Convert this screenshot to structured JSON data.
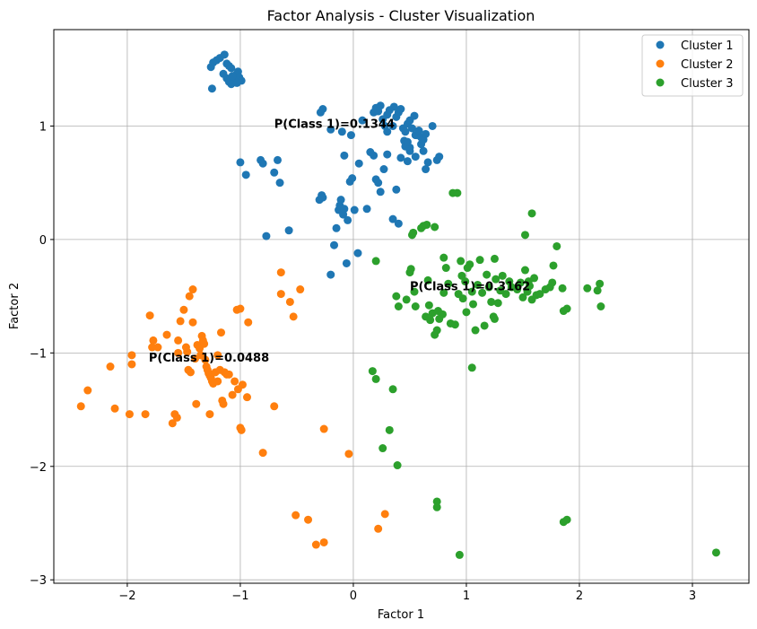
{
  "chart_data": {
    "type": "scatter",
    "title": "Factor Analysis - Cluster Visualization",
    "xlabel": "Factor 1",
    "ylabel": "Factor 2",
    "xlim": [
      -2.65,
      3.5
    ],
    "ylim": [
      -3.03,
      1.85
    ],
    "xticks": [
      -2,
      -1,
      0,
      1,
      2,
      3
    ],
    "yticks": [
      -3,
      -2,
      -1,
      0,
      1
    ],
    "grid": true,
    "legend_position": "top-right",
    "series": [
      {
        "name": "Cluster 1",
        "color": "#1f77b4",
        "points": [
          [
            -1.26,
            1.52
          ],
          [
            -1.24,
            1.56
          ],
          [
            -1.21,
            1.58
          ],
          [
            -1.18,
            1.6
          ],
          [
            -1.14,
            1.63
          ],
          [
            -1.12,
            1.55
          ],
          [
            -1.1,
            1.53
          ],
          [
            -1.08,
            1.51
          ],
          [
            -1.04,
            1.45
          ],
          [
            -1.02,
            1.48
          ],
          [
            -1.15,
            1.46
          ],
          [
            -1.12,
            1.42
          ],
          [
            -1.1,
            1.39
          ],
          [
            -1.08,
            1.37
          ],
          [
            -1.05,
            1.41
          ],
          [
            -1.01,
            1.43
          ],
          [
            -0.99,
            1.4
          ],
          [
            -1.03,
            1.38
          ],
          [
            -1.07,
            1.44
          ],
          [
            -1.25,
            1.33
          ],
          [
            -1.0,
            0.68
          ],
          [
            -0.95,
            0.57
          ],
          [
            -0.82,
            0.7
          ],
          [
            -0.8,
            0.67
          ],
          [
            -0.7,
            0.59
          ],
          [
            -0.67,
            0.7
          ],
          [
            -0.65,
            0.5
          ],
          [
            -0.77,
            0.03
          ],
          [
            -0.57,
            0.08
          ],
          [
            -0.3,
            0.35
          ],
          [
            -0.28,
            0.39
          ],
          [
            -0.27,
            0.37
          ],
          [
            -0.2,
            -0.31
          ],
          [
            -0.17,
            -0.05
          ],
          [
            -0.15,
            0.1
          ],
          [
            -0.13,
            0.26
          ],
          [
            -0.12,
            0.3
          ],
          [
            -0.11,
            0.35
          ],
          [
            -0.09,
            0.22
          ],
          [
            -0.08,
            0.27
          ],
          [
            -0.05,
            0.17
          ],
          [
            -0.03,
            0.51
          ],
          [
            -0.01,
            0.54
          ],
          [
            0.01,
            0.26
          ],
          [
            0.04,
            -0.12
          ],
          [
            -0.06,
            -0.21
          ],
          [
            0.12,
            0.27
          ],
          [
            0.15,
            0.77
          ],
          [
            0.18,
            0.74
          ],
          [
            0.22,
            0.5
          ],
          [
            0.24,
            0.42
          ],
          [
            0.27,
            0.62
          ],
          [
            0.3,
            0.75
          ],
          [
            0.35,
            0.18
          ],
          [
            0.38,
            0.44
          ],
          [
            0.4,
            0.14
          ],
          [
            0.42,
            0.72
          ],
          [
            0.45,
            0.87
          ],
          [
            0.48,
            0.69
          ],
          [
            0.5,
            0.81
          ],
          [
            0.55,
            0.92
          ],
          [
            0.6,
            0.84
          ],
          [
            0.62,
            0.78
          ],
          [
            0.66,
            0.68
          ],
          [
            0.7,
            1.0
          ],
          [
            0.74,
            0.7
          ],
          [
            0.76,
            0.73
          ],
          [
            0.64,
            0.62
          ],
          [
            0.55,
            0.73
          ],
          [
            -0.29,
            1.12
          ],
          [
            -0.27,
            1.15
          ],
          [
            -0.2,
            0.97
          ],
          [
            -0.1,
            0.95
          ],
          [
            -0.02,
            0.92
          ],
          [
            0.08,
            1.05
          ],
          [
            0.18,
            1.12
          ],
          [
            0.2,
            1.16
          ],
          [
            0.24,
            1.18
          ],
          [
            0.26,
            1.06
          ],
          [
            0.3,
            1.1
          ],
          [
            0.32,
            1.14
          ],
          [
            0.35,
            1.0
          ],
          [
            0.38,
            1.08
          ],
          [
            0.4,
            1.12
          ],
          [
            0.42,
            1.15
          ],
          [
            0.44,
            0.98
          ],
          [
            0.46,
            0.95
          ],
          [
            0.48,
            1.02
          ],
          [
            0.5,
            1.05
          ],
          [
            0.52,
            0.98
          ],
          [
            0.54,
            1.09
          ],
          [
            0.56,
            0.92
          ],
          [
            0.58,
            0.96
          ],
          [
            0.6,
            0.9
          ],
          [
            0.62,
            0.88
          ],
          [
            0.64,
            0.93
          ],
          [
            0.28,
            1.0
          ],
          [
            0.22,
            1.13
          ],
          [
            0.36,
            1.17
          ],
          [
            -0.08,
            0.74
          ],
          [
            0.05,
            0.67
          ],
          [
            0.2,
            0.53
          ],
          [
            0.3,
            0.95
          ],
          [
            0.46,
            0.82
          ],
          [
            0.5,
            0.78
          ],
          [
            0.48,
            0.86
          ]
        ]
      },
      {
        "name": "Cluster 2",
        "color": "#ff7f0e",
        "points": [
          [
            -2.41,
            -1.47
          ],
          [
            -2.35,
            -1.33
          ],
          [
            -2.15,
            -1.12
          ],
          [
            -2.11,
            -1.49
          ],
          [
            -1.98,
            -1.54
          ],
          [
            -1.96,
            -1.1
          ],
          [
            -1.96,
            -1.02
          ],
          [
            -1.84,
            -1.54
          ],
          [
            -1.8,
            -0.67
          ],
          [
            -1.78,
            -0.95
          ],
          [
            -1.77,
            -0.89
          ],
          [
            -1.73,
            -0.95
          ],
          [
            -1.65,
            -0.84
          ],
          [
            -1.6,
            -1.62
          ],
          [
            -1.58,
            -1.54
          ],
          [
            -1.56,
            -1.57
          ],
          [
            -1.55,
            -1.0
          ],
          [
            -1.55,
            -0.89
          ],
          [
            -1.53,
            -0.72
          ],
          [
            -1.5,
            -0.62
          ],
          [
            -1.48,
            -0.95
          ],
          [
            -1.47,
            -0.99
          ],
          [
            -1.46,
            -1.15
          ],
          [
            -1.45,
            -0.5
          ],
          [
            -1.44,
            -1.17
          ],
          [
            -1.42,
            -0.44
          ],
          [
            -1.42,
            -0.73
          ],
          [
            -1.4,
            -1.05
          ],
          [
            -1.38,
            -0.93
          ],
          [
            -1.36,
            -0.96
          ],
          [
            -1.35,
            -1.02
          ],
          [
            -1.34,
            -0.85
          ],
          [
            -1.33,
            -0.89
          ],
          [
            -1.32,
            -0.92
          ],
          [
            -1.31,
            -1.06
          ],
          [
            -1.3,
            -1.12
          ],
          [
            -1.29,
            -1.15
          ],
          [
            -1.28,
            -1.18
          ],
          [
            -1.27,
            -1.2
          ],
          [
            -1.26,
            -1.22
          ],
          [
            -1.25,
            -1.25
          ],
          [
            -1.24,
            -1.27
          ],
          [
            -1.22,
            -1.17
          ],
          [
            -1.2,
            -1.02
          ],
          [
            -1.18,
            -1.15
          ],
          [
            -1.17,
            -0.82
          ],
          [
            -1.16,
            -1.42
          ],
          [
            -1.14,
            -1.17
          ],
          [
            -1.12,
            -1.19
          ],
          [
            -1.1,
            -1.19
          ],
          [
            -1.07,
            -1.37
          ],
          [
            -1.05,
            -1.25
          ],
          [
            -1.03,
            -0.62
          ],
          [
            -1.02,
            -1.32
          ],
          [
            -1.0,
            -1.66
          ],
          [
            -0.99,
            -1.68
          ],
          [
            -0.98,
            -1.28
          ],
          [
            -0.94,
            -1.39
          ],
          [
            -0.93,
            -0.73
          ],
          [
            -1.39,
            -1.45
          ],
          [
            -1.27,
            -1.54
          ],
          [
            -1.2,
            -1.25
          ],
          [
            -1.15,
            -1.45
          ],
          [
            -0.8,
            -1.88
          ],
          [
            -0.7,
            -1.47
          ],
          [
            -0.64,
            -0.29
          ],
          [
            -0.64,
            -0.48
          ],
          [
            -0.56,
            -0.55
          ],
          [
            -0.53,
            -0.68
          ],
          [
            -0.47,
            -0.44
          ],
          [
            -0.51,
            -2.43
          ],
          [
            -0.4,
            -2.47
          ],
          [
            -0.33,
            -2.69
          ],
          [
            -0.26,
            -2.67
          ],
          [
            -0.26,
            -1.67
          ],
          [
            -0.04,
            -1.89
          ],
          [
            0.22,
            -2.55
          ],
          [
            0.28,
            -2.42
          ],
          [
            -1.0,
            -0.61
          ]
        ]
      },
      {
        "name": "Cluster 3",
        "color": "#2ca02c",
        "points": [
          [
            0.17,
            -1.16
          ],
          [
            0.2,
            -1.23
          ],
          [
            0.2,
            -0.19
          ],
          [
            0.26,
            -1.84
          ],
          [
            0.32,
            -1.68
          ],
          [
            0.35,
            -1.32
          ],
          [
            0.39,
            -1.99
          ],
          [
            0.38,
            -0.5
          ],
          [
            0.4,
            -0.59
          ],
          [
            0.47,
            -0.53
          ],
          [
            0.5,
            -0.29
          ],
          [
            0.51,
            -0.26
          ],
          [
            0.52,
            0.04
          ],
          [
            0.53,
            0.06
          ],
          [
            0.54,
            -0.46
          ],
          [
            0.55,
            -0.59
          ],
          [
            0.6,
            0.1
          ],
          [
            0.62,
            0.12
          ],
          [
            0.64,
            -0.68
          ],
          [
            0.65,
            0.13
          ],
          [
            0.66,
            -0.36
          ],
          [
            0.67,
            -0.58
          ],
          [
            0.68,
            -0.71
          ],
          [
            0.7,
            -0.65
          ],
          [
            0.72,
            -0.84
          ],
          [
            0.72,
            0.11
          ],
          [
            0.74,
            -0.8
          ],
          [
            0.75,
            -0.63
          ],
          [
            0.76,
            -0.7
          ],
          [
            0.79,
            -0.66
          ],
          [
            0.8,
            -0.47
          ],
          [
            0.8,
            -0.16
          ],
          [
            0.82,
            -0.25
          ],
          [
            0.84,
            -0.39
          ],
          [
            0.86,
            -0.74
          ],
          [
            0.88,
            0.41
          ],
          [
            0.9,
            -0.75
          ],
          [
            0.92,
            0.41
          ],
          [
            0.93,
            -0.48
          ],
          [
            0.95,
            -0.19
          ],
          [
            0.97,
            -0.52
          ],
          [
            0.99,
            -0.37
          ],
          [
            1.0,
            -0.64
          ],
          [
            1.01,
            -0.25
          ],
          [
            1.03,
            -0.22
          ],
          [
            1.05,
            -0.46
          ],
          [
            1.06,
            -0.57
          ],
          [
            1.08,
            -0.8
          ],
          [
            1.1,
            -0.4
          ],
          [
            1.12,
            -0.18
          ],
          [
            1.14,
            -0.47
          ],
          [
            1.16,
            -0.76
          ],
          [
            1.18,
            -0.31
          ],
          [
            1.2,
            -0.42
          ],
          [
            1.22,
            -0.55
          ],
          [
            1.24,
            -0.68
          ],
          [
            1.26,
            -0.35
          ],
          [
            1.28,
            -0.56
          ],
          [
            1.3,
            -0.45
          ],
          [
            1.32,
            -0.32
          ],
          [
            1.35,
            -0.48
          ],
          [
            1.38,
            -0.37
          ],
          [
            1.4,
            -0.42
          ],
          [
            1.45,
            -0.44
          ],
          [
            1.48,
            -0.38
          ],
          [
            1.5,
            -0.51
          ],
          [
            1.52,
            -0.27
          ],
          [
            1.54,
            -0.46
          ],
          [
            1.56,
            -0.41
          ],
          [
            1.58,
            -0.53
          ],
          [
            1.6,
            -0.34
          ],
          [
            1.62,
            -0.49
          ],
          [
            1.65,
            -0.48
          ],
          [
            1.7,
            -0.44
          ],
          [
            1.74,
            -0.42
          ],
          [
            1.76,
            -0.38
          ],
          [
            1.77,
            -0.23
          ],
          [
            1.8,
            -0.06
          ],
          [
            1.52,
            0.04
          ],
          [
            1.58,
            0.23
          ],
          [
            1.85,
            -0.43
          ],
          [
            1.86,
            -0.63
          ],
          [
            1.89,
            -0.61
          ],
          [
            2.16,
            -0.45
          ],
          [
            2.18,
            -0.39
          ],
          [
            2.19,
            -0.59
          ],
          [
            2.07,
            -0.43
          ],
          [
            1.55,
            -0.37
          ],
          [
            1.25,
            -0.17
          ],
          [
            1.05,
            -1.13
          ],
          [
            0.74,
            -2.31
          ],
          [
            0.74,
            -2.36
          ],
          [
            0.94,
            -2.78
          ],
          [
            1.86,
            -2.49
          ],
          [
            1.89,
            -2.47
          ],
          [
            3.21,
            -2.76
          ],
          [
            1.25,
            -0.7
          ],
          [
            0.96,
            -0.32
          ]
        ]
      }
    ],
    "annotations": [
      {
        "text": "P(Class 1)=0.1344",
        "x": -0.7,
        "y": 1.0
      },
      {
        "text": "P(Class 1)=0.3162",
        "x": 0.5,
        "y": -0.43
      },
      {
        "text": "P(Class 1)=0.0488",
        "x": -1.81,
        "y": -1.06
      }
    ]
  }
}
